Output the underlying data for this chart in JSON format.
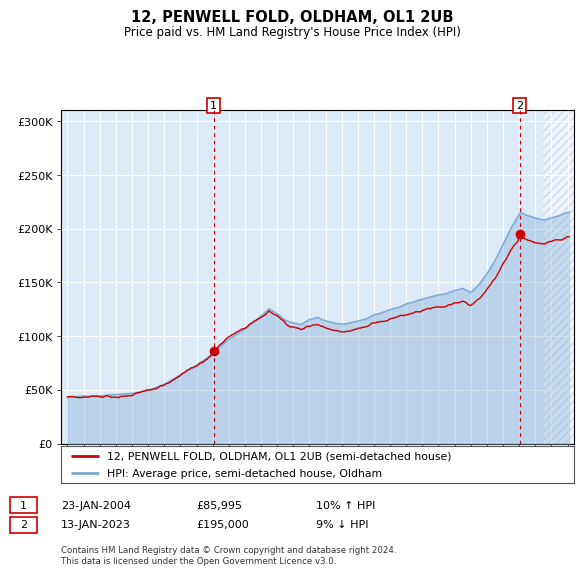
{
  "title": "12, PENWELL FOLD, OLDHAM, OL1 2UB",
  "subtitle": "Price paid vs. HM Land Registry's House Price Index (HPI)",
  "legend_line1": "12, PENWELL FOLD, OLDHAM, OL1 2UB (semi-detached house)",
  "legend_line2": "HPI: Average price, semi-detached house, Oldham",
  "annotation1_date": "23-JAN-2004",
  "annotation1_price": "£85,995",
  "annotation1_hpi": "10% ↑ HPI",
  "annotation2_date": "13-JAN-2023",
  "annotation2_price": "£195,000",
  "annotation2_hpi": "9% ↓ HPI",
  "footer": "Contains HM Land Registry data © Crown copyright and database right 2024.\nThis data is licensed under the Open Government Licence v3.0.",
  "hpi_color": "#7aaad4",
  "price_color": "#cc0000",
  "bg_color": "#ddeaf7",
  "marker_color": "#cc0000",
  "vline_color": "#cc0000",
  "ylim": [
    0,
    310000
  ],
  "yticks": [
    0,
    50000,
    100000,
    150000,
    200000,
    250000,
    300000
  ],
  "start_year": 1995,
  "end_year": 2026,
  "sale1_year": 2004.06,
  "sale1_price": 85995,
  "sale2_year": 2023.04,
  "sale2_price": 195000
}
